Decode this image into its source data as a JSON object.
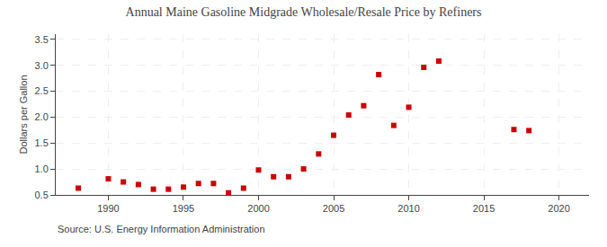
{
  "chart_data": {
    "type": "scatter",
    "title": "Annual Maine Gasoline Midgrade Wholesale/Resale Price by Refiners",
    "ylabel": "Dollars per Gallon",
    "annotations": [
      "Source: U.S. Energy Information Administration"
    ],
    "x": [
      1988,
      1990,
      1991,
      1992,
      1993,
      1994,
      1995,
      1996,
      1997,
      1998,
      1999,
      2000,
      2001,
      2002,
      2003,
      2004,
      2005,
      2006,
      2007,
      2008,
      2009,
      2010,
      2011,
      2012,
      2017,
      2018
    ],
    "values": [
      0.63,
      0.81,
      0.75,
      0.7,
      0.61,
      0.61,
      0.65,
      0.72,
      0.72,
      0.54,
      0.63,
      0.98,
      0.85,
      0.85,
      1.0,
      1.29,
      1.65,
      2.04,
      2.22,
      2.82,
      1.84,
      2.19,
      2.96,
      3.08,
      1.76,
      1.74
    ],
    "color": "#cc0000",
    "marker": "square",
    "xlim": [
      1986.5,
      2022
    ],
    "ylim": [
      0.5,
      3.6
    ],
    "xticks": [
      1990,
      1995,
      2000,
      2005,
      2010,
      2015,
      2020
    ],
    "yticks": [
      0.5,
      {
        "value": 1,
        "label": "1.0"
      },
      1.5,
      {
        "value": 2,
        "label": "2.0"
      },
      2.5,
      {
        "value": 3,
        "label": "3.0"
      },
      3.5
    ],
    "grid": true
  }
}
